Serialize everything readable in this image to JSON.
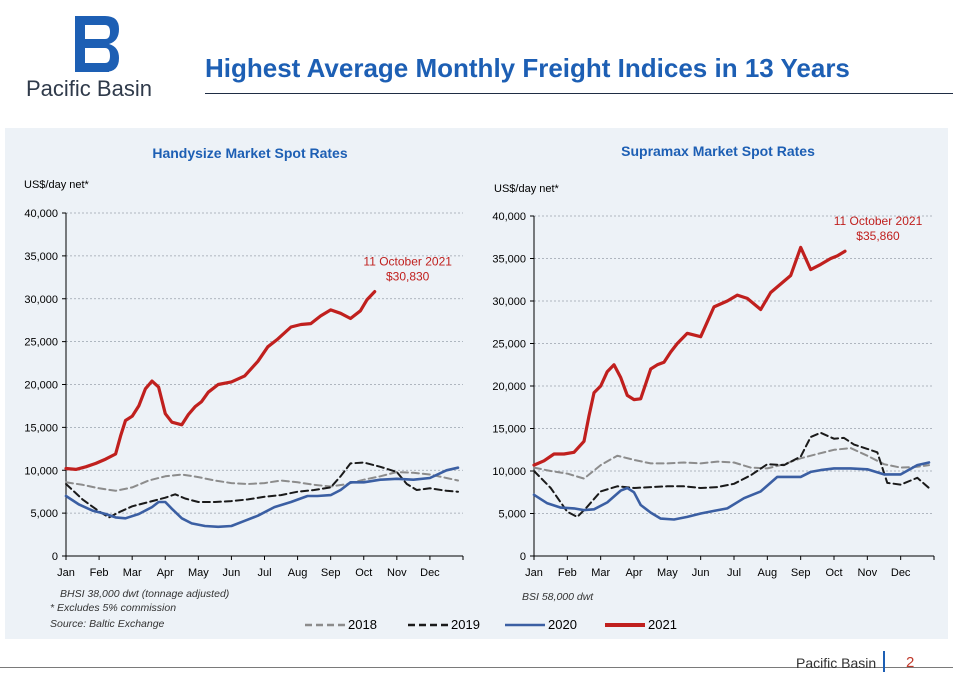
{
  "header": {
    "logo_text": "Pacific Basin",
    "title": "Highest Average Monthly Freight Indices in 13 Years"
  },
  "footer": {
    "brand": "Pacific Basin",
    "page": "2"
  },
  "notes": {
    "left": [
      "BHSI 38,000 dwt (tonnage adjusted)",
      "* Excludes 5% commission",
      "Source: Baltic Exchange"
    ],
    "right": "BSI 58,000 dwt"
  },
  "legend": [
    {
      "name": "2018",
      "color": "#8c8c8c",
      "dash": "dashed"
    },
    {
      "name": "2019",
      "color": "#1a1a1a",
      "dash": "dashed"
    },
    {
      "name": "2020",
      "color": "#3b5fa3",
      "dash": "solid"
    },
    {
      "name": "2021",
      "color": "#c0201e",
      "dash": "solid"
    }
  ],
  "chart_data": [
    {
      "type": "line",
      "title": "Handysize Market Spot Rates",
      "ylabel": "US$/day net*",
      "x_unit": "month",
      "xlim": [
        0,
        12
      ],
      "ylim": [
        0,
        40000
      ],
      "yticks": [
        0,
        5000,
        10000,
        15000,
        20000,
        25000,
        30000,
        35000,
        40000
      ],
      "xticks": [
        "Jan",
        "Feb",
        "Mar",
        "Apr",
        "May",
        "Jun",
        "Jul",
        "Aug",
        "Sep",
        "Oct",
        "Nov",
        "Dec"
      ],
      "grid": true,
      "annotation": {
        "lines": [
          "11 October 2021",
          "$30,830"
        ],
        "x": 9.33,
        "y": 30830
      },
      "series": [
        {
          "name": "2018",
          "x": [
            0,
            0.5,
            1,
            1.5,
            2,
            2.5,
            3,
            3.5,
            4,
            4.5,
            5,
            5.5,
            6,
            6.5,
            7,
            7.5,
            8,
            8.5,
            9,
            9.5,
            10,
            10.5,
            11,
            11.5,
            11.85
          ],
          "y": [
            8600,
            8300,
            7900,
            7600,
            8000,
            8800,
            9300,
            9500,
            9200,
            8800,
            8500,
            8400,
            8500,
            8800,
            8600,
            8300,
            8100,
            8400,
            8900,
            9300,
            9800,
            9700,
            9500,
            9100,
            8800
          ]
        },
        {
          "name": "2019",
          "x": [
            0,
            0.5,
            1,
            1.3,
            1.6,
            2,
            2.5,
            3,
            3.3,
            3.6,
            4,
            4.5,
            5,
            5.5,
            6,
            6.5,
            7,
            7.5,
            8,
            8.3,
            8.6,
            9,
            9.5,
            10,
            10.3,
            10.6,
            11,
            11.5,
            11.85
          ],
          "y": [
            8400,
            6600,
            5200,
            4500,
            5100,
            5800,
            6300,
            6800,
            7200,
            6700,
            6300,
            6300,
            6400,
            6600,
            6900,
            7100,
            7500,
            7700,
            8000,
            9300,
            10800,
            10900,
            10400,
            9800,
            8400,
            7700,
            7900,
            7600,
            7500
          ]
        },
        {
          "name": "2020",
          "x": [
            0,
            0.4,
            0.8,
            1.2,
            1.5,
            1.8,
            2.2,
            2.6,
            2.8,
            3,
            3.2,
            3.5,
            3.8,
            4.2,
            4.6,
            5,
            5.4,
            5.8,
            6.3,
            6.8,
            7.3,
            7.6,
            8,
            8.3,
            8.6,
            9,
            9.5,
            10,
            10.5,
            11,
            11.5,
            11.85
          ],
          "y": [
            7000,
            6000,
            5300,
            4900,
            4500,
            4400,
            4900,
            5700,
            6300,
            6300,
            5500,
            4400,
            3800,
            3500,
            3400,
            3500,
            4100,
            4700,
            5700,
            6300,
            7000,
            7000,
            7100,
            7700,
            8600,
            8600,
            8900,
            9000,
            8900,
            9100,
            10000,
            10300
          ]
        },
        {
          "name": "2021",
          "x": [
            0,
            0.3,
            0.6,
            0.9,
            1.2,
            1.5,
            1.65,
            1.8,
            2,
            2.2,
            2.4,
            2.6,
            2.8,
            3,
            3.2,
            3.5,
            3.7,
            3.9,
            4.1,
            4.3,
            4.6,
            5,
            5.4,
            5.8,
            6.1,
            6.4,
            6.8,
            7.1,
            7.4,
            7.7,
            8,
            8.3,
            8.6,
            8.9,
            9.1,
            9.33
          ],
          "y": [
            10200,
            10100,
            10400,
            10800,
            11300,
            11900,
            14000,
            15800,
            16300,
            17500,
            19500,
            20400,
            19700,
            16600,
            15600,
            15300,
            16500,
            17400,
            18000,
            19100,
            20000,
            20300,
            21000,
            22700,
            24400,
            25300,
            26700,
            27000,
            27100,
            28000,
            28700,
            28300,
            27700,
            28600,
            29900,
            30830
          ]
        }
      ]
    },
    {
      "type": "line",
      "title": "Supramax Market Spot Rates",
      "ylabel": "US$/day net*",
      "x_unit": "month",
      "xlim": [
        0,
        12
      ],
      "ylim": [
        0,
        40000
      ],
      "yticks": [
        0,
        5000,
        10000,
        15000,
        20000,
        25000,
        30000,
        35000,
        40000
      ],
      "xticks": [
        "Jan",
        "Feb",
        "Mar",
        "Apr",
        "May",
        "Jun",
        "Jul",
        "Aug",
        "Sep",
        "Oct",
        "Nov",
        "Dec"
      ],
      "grid": true,
      "annotation": {
        "lines": [
          "11 October 2021",
          "$35,860"
        ],
        "x": 9.33,
        "y": 35860
      },
      "series": [
        {
          "name": "2018",
          "x": [
            0,
            0.5,
            1,
            1.5,
            2,
            2.5,
            3,
            3.5,
            4,
            4.5,
            5,
            5.5,
            6,
            6.5,
            7,
            7.5,
            8,
            8.5,
            9,
            9.5,
            10,
            10.5,
            11,
            11.5,
            11.85
          ],
          "y": [
            10400,
            10000,
            9700,
            9100,
            10700,
            11800,
            11300,
            10900,
            10900,
            11000,
            10900,
            11100,
            11000,
            10400,
            10300,
            10800,
            11500,
            12000,
            12500,
            12700,
            11800,
            10800,
            10400,
            10500,
            10700
          ]
        },
        {
          "name": "2019",
          "x": [
            0,
            0.5,
            1,
            1.3,
            1.6,
            2,
            2.5,
            3,
            3.5,
            4,
            4.5,
            5,
            5.5,
            6,
            6.5,
            7,
            7.5,
            8,
            8.3,
            8.6,
            9,
            9.3,
            9.6,
            10,
            10.3,
            10.6,
            11,
            11.5,
            11.85
          ],
          "y": [
            10000,
            8000,
            5200,
            4600,
            5800,
            7600,
            8200,
            8000,
            8100,
            8200,
            8200,
            8000,
            8100,
            8500,
            9500,
            10800,
            10700,
            11700,
            14000,
            14500,
            13800,
            13900,
            13100,
            12600,
            12200,
            8600,
            8400,
            9200,
            8000
          ]
        },
        {
          "name": "2020",
          "x": [
            0,
            0.4,
            0.8,
            1.2,
            1.5,
            1.8,
            2.2,
            2.6,
            2.8,
            3,
            3.2,
            3.5,
            3.8,
            4.2,
            4.6,
            5,
            5.4,
            5.8,
            6.3,
            6.8,
            7.3,
            7.6,
            8,
            8.3,
            8.6,
            9,
            9.5,
            10,
            10.5,
            11,
            11.5,
            11.85
          ],
          "y": [
            7200,
            6200,
            5700,
            5600,
            5400,
            5500,
            6300,
            7700,
            8000,
            7500,
            6000,
            5100,
            4400,
            4300,
            4600,
            5000,
            5300,
            5600,
            6800,
            7600,
            9300,
            9300,
            9300,
            9900,
            10100,
            10300,
            10300,
            10200,
            9600,
            9600,
            10700,
            11000
          ]
        },
        {
          "name": "2021",
          "x": [
            0,
            0.3,
            0.6,
            0.9,
            1.2,
            1.5,
            1.65,
            1.8,
            2,
            2.2,
            2.4,
            2.6,
            2.8,
            3,
            3.2,
            3.5,
            3.7,
            3.9,
            4.1,
            4.3,
            4.6,
            5,
            5.4,
            5.8,
            6.1,
            6.4,
            6.8,
            7.1,
            7.4,
            7.7,
            8,
            8.3,
            8.6,
            8.9,
            9.1,
            9.33
          ],
          "y": [
            10700,
            11200,
            12000,
            12000,
            12200,
            13500,
            16500,
            19200,
            20000,
            21700,
            22500,
            21000,
            18900,
            18400,
            18500,
            22000,
            22500,
            22800,
            24000,
            25000,
            26200,
            25800,
            29300,
            30000,
            30700,
            30300,
            29000,
            31000,
            32000,
            33000,
            36300,
            33700,
            34300,
            35000,
            35300,
            35860
          ]
        }
      ]
    }
  ]
}
